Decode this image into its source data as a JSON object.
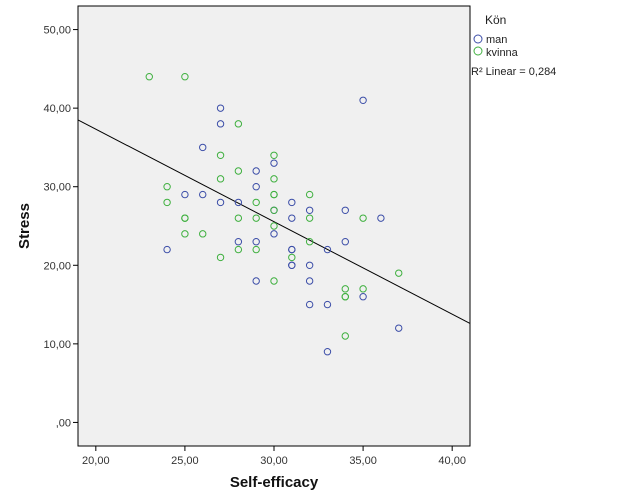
{
  "chart_data": {
    "type": "scatter",
    "title": "",
    "xlabel": "Self-efficacy",
    "ylabel": "Stress",
    "xlim": [
      19,
      41
    ],
    "ylim": [
      -3,
      53
    ],
    "x_ticks": [
      20,
      25,
      30,
      35,
      40
    ],
    "y_ticks": [
      0,
      10,
      20,
      30,
      40,
      50
    ],
    "x_tick_labels": [
      "20,00",
      "25,00",
      "30,00",
      "35,00",
      "40,00"
    ],
    "y_tick_labels": [
      ",00",
      "10,00",
      "20,00",
      "30,00",
      "40,00",
      "50,00"
    ],
    "grid": false,
    "background": "#f0f0f0",
    "legend_position": "right",
    "legend_title": "Kön",
    "series": [
      {
        "name": "man",
        "color": "#3c4ea8",
        "marker": "circle-open",
        "points": [
          [
            27,
            40
          ],
          [
            27,
            38
          ],
          [
            26,
            35
          ],
          [
            30,
            33
          ],
          [
            29,
            32
          ],
          [
            29,
            30
          ],
          [
            25,
            29
          ],
          [
            26,
            29
          ],
          [
            27,
            28
          ],
          [
            28,
            28
          ],
          [
            31,
            28
          ],
          [
            34,
            27
          ],
          [
            32,
            27
          ],
          [
            30,
            27
          ],
          [
            36,
            26
          ],
          [
            31,
            26
          ],
          [
            30,
            24
          ],
          [
            34,
            23
          ],
          [
            28,
            23
          ],
          [
            29,
            23
          ],
          [
            24,
            22
          ],
          [
            31,
            22
          ],
          [
            31,
            22
          ],
          [
            33,
            22
          ],
          [
            31,
            20
          ],
          [
            31,
            20
          ],
          [
            32,
            20
          ],
          [
            29,
            18
          ],
          [
            32,
            18
          ],
          [
            32,
            15
          ],
          [
            33,
            15
          ],
          [
            35,
            16
          ],
          [
            37,
            12
          ],
          [
            33,
            9
          ],
          [
            35,
            41
          ]
        ]
      },
      {
        "name": "kvinna",
        "color": "#3fb03f",
        "marker": "circle-open",
        "points": [
          [
            23,
            44
          ],
          [
            25,
            44
          ],
          [
            28,
            38
          ],
          [
            27,
            34
          ],
          [
            30,
            34
          ],
          [
            28,
            32
          ],
          [
            27,
            31
          ],
          [
            30,
            31
          ],
          [
            24,
            30
          ],
          [
            30,
            29
          ],
          [
            30,
            29
          ],
          [
            32,
            29
          ],
          [
            24,
            28
          ],
          [
            29,
            28
          ],
          [
            30,
            27
          ],
          [
            25,
            26
          ],
          [
            25,
            26
          ],
          [
            28,
            26
          ],
          [
            29,
            26
          ],
          [
            32,
            26
          ],
          [
            35,
            26
          ],
          [
            30,
            25
          ],
          [
            25,
            24
          ],
          [
            26,
            24
          ],
          [
            32,
            23
          ],
          [
            28,
            22
          ],
          [
            29,
            22
          ],
          [
            27,
            21
          ],
          [
            31,
            21
          ],
          [
            37,
            19
          ],
          [
            30,
            18
          ],
          [
            34,
            17
          ],
          [
            35,
            17
          ],
          [
            34,
            16
          ],
          [
            34,
            16
          ],
          [
            34,
            11
          ]
        ]
      }
    ],
    "fit_line": {
      "label": "R² Linear = 0,284",
      "x": [
        19,
        41
      ],
      "y": [
        38.5,
        12.6
      ],
      "color": "#000000"
    }
  }
}
